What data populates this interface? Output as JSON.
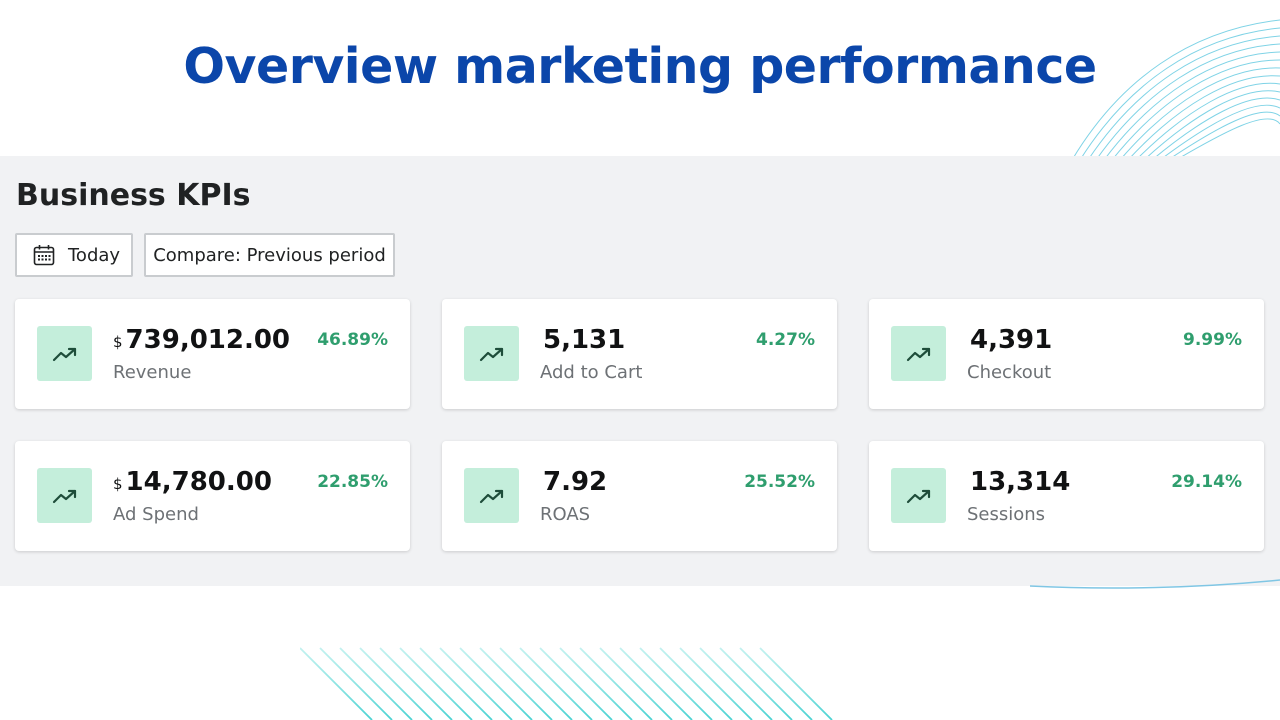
{
  "header": {
    "title": "Overview marketing performance"
  },
  "panel": {
    "title": "Business KPIs",
    "date_button_label": "Today",
    "compare_button_label": "Compare: Previous period"
  },
  "kpis": [
    {
      "currency": "$",
      "value": "739,012.00",
      "label": "Revenue",
      "delta": "46.89%"
    },
    {
      "currency": "",
      "value": "5,131",
      "label": "Add to Cart",
      "delta": "4.27%"
    },
    {
      "currency": "",
      "value": "4,391",
      "label": "Checkout",
      "delta": "9.99%"
    },
    {
      "currency": "$",
      "value": "14,780.00",
      "label": "Ad Spend",
      "delta": "22.85%"
    },
    {
      "currency": "",
      "value": "7.92",
      "label": "ROAS",
      "delta": "25.52%"
    },
    {
      "currency": "",
      "value": "13,314",
      "label": "Sessions",
      "delta": "29.14%"
    }
  ],
  "icons": {
    "date": "calendar-icon",
    "kpi_trend": "trending-up-icon"
  },
  "colors": {
    "title": "#0b46aa",
    "panel_bg": "#f1f2f4",
    "positive": "#2f9e6e",
    "badge_bg": "#c4eedb",
    "decoration": "#3ec7d3"
  }
}
